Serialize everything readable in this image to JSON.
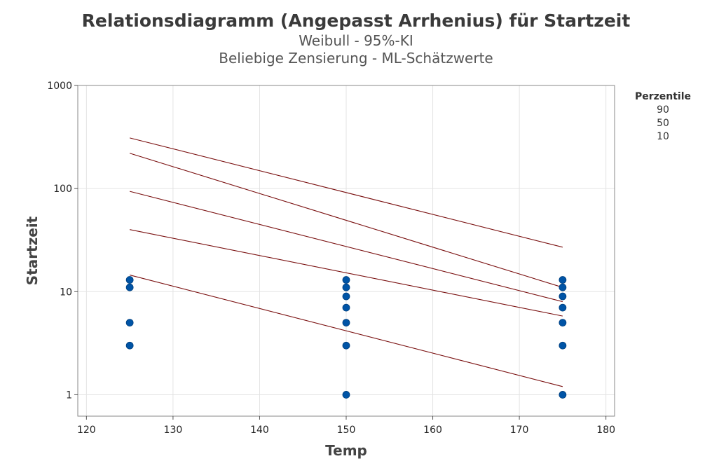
{
  "chart_data": {
    "type": "scatter",
    "title": "Relationsdiagramm (Angepasst Arrhenius) für Startzeit",
    "subtitle1": "Weibull - 95%-KI",
    "subtitle2": "Beliebige Zensierung - ML-Schätzwerte",
    "xlabel": "Temp",
    "ylabel": "Startzeit",
    "xlim": [
      119,
      181
    ],
    "ylim": [
      0.62,
      1000
    ],
    "y_scale": "log",
    "x_ticks": [
      120,
      130,
      140,
      150,
      160,
      170,
      180
    ],
    "y_ticks": [
      1,
      10,
      100,
      1000
    ],
    "y_tick_labels": [
      "1",
      "10",
      "100",
      "1000"
    ],
    "grid": true,
    "legend": {
      "title": "Perzentile",
      "entries": [
        "90",
        "50",
        "10"
      ],
      "placement": "right"
    },
    "points": [
      {
        "x": 125,
        "y": 13
      },
      {
        "x": 125,
        "y": 11
      },
      {
        "x": 125,
        "y": 5
      },
      {
        "x": 125,
        "y": 3
      },
      {
        "x": 150,
        "y": 13
      },
      {
        "x": 150,
        "y": 11
      },
      {
        "x": 150,
        "y": 9
      },
      {
        "x": 150,
        "y": 7
      },
      {
        "x": 150,
        "y": 5
      },
      {
        "x": 150,
        "y": 3
      },
      {
        "x": 150,
        "y": 1
      },
      {
        "x": 175,
        "y": 13
      },
      {
        "x": 175,
        "y": 11
      },
      {
        "x": 175,
        "y": 9
      },
      {
        "x": 175,
        "y": 7
      },
      {
        "x": 175,
        "y": 5
      },
      {
        "x": 175,
        "y": 3
      },
      {
        "x": 175,
        "y": 1
      }
    ],
    "lines": [
      {
        "x": [
          125,
          175
        ],
        "y": [
          310,
          27
        ]
      },
      {
        "x": [
          125,
          175
        ],
        "y": [
          220,
          11
        ]
      },
      {
        "x": [
          125,
          175
        ],
        "y": [
          94,
          8
        ]
      },
      {
        "x": [
          125,
          175
        ],
        "y": [
          40,
          5.8
        ]
      },
      {
        "x": [
          125,
          175
        ],
        "y": [
          14.5,
          1.2
        ]
      }
    ],
    "colors": {
      "points": "#0054a6",
      "lines": "#7a1010",
      "grid": "#e3e3e3",
      "frame": "#888888"
    }
  }
}
